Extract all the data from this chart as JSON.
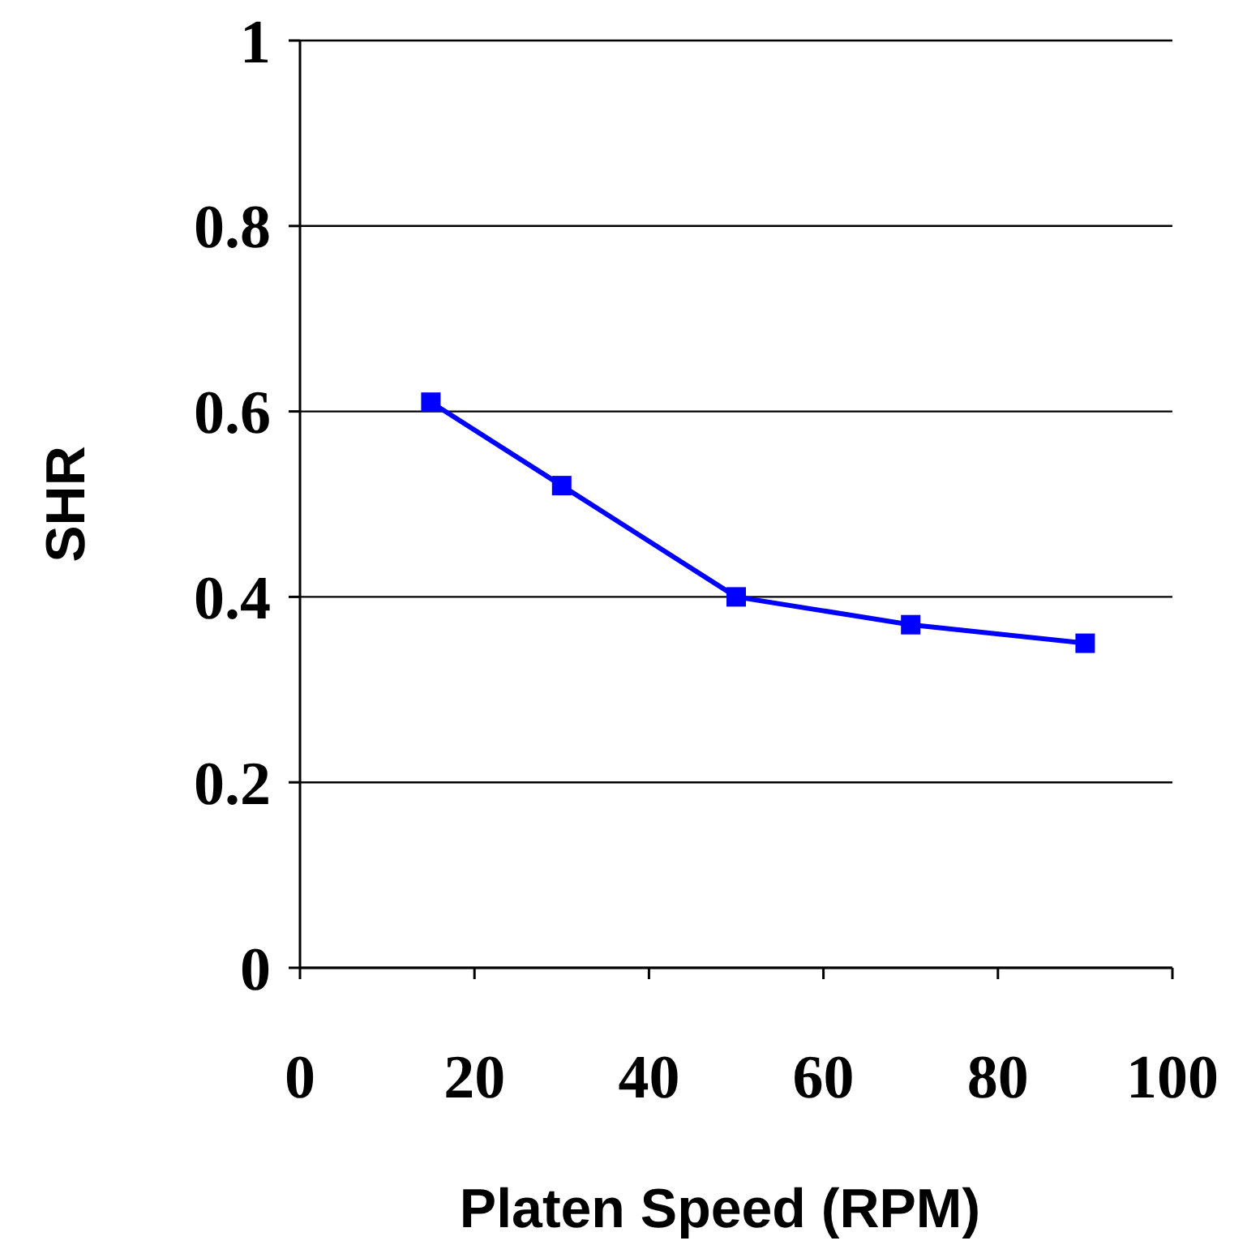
{
  "chart_data": {
    "type": "line",
    "xlabel": "Platen Speed (RPM)",
    "ylabel": "SHR",
    "x": [
      15,
      30,
      50,
      70,
      90
    ],
    "series": [
      {
        "color": "#0000ff",
        "values": [
          0.61,
          0.52,
          0.4,
          0.37,
          0.35
        ]
      }
    ],
    "xlim": [
      0,
      100
    ],
    "xticks": [
      0,
      20,
      40,
      60,
      80,
      100
    ],
    "ylim": [
      0,
      1
    ],
    "yticks": [
      0,
      0.2,
      0.4,
      0.6,
      0.8,
      1
    ],
    "grid": "y",
    "marker": "square",
    "line_style": "solid"
  }
}
